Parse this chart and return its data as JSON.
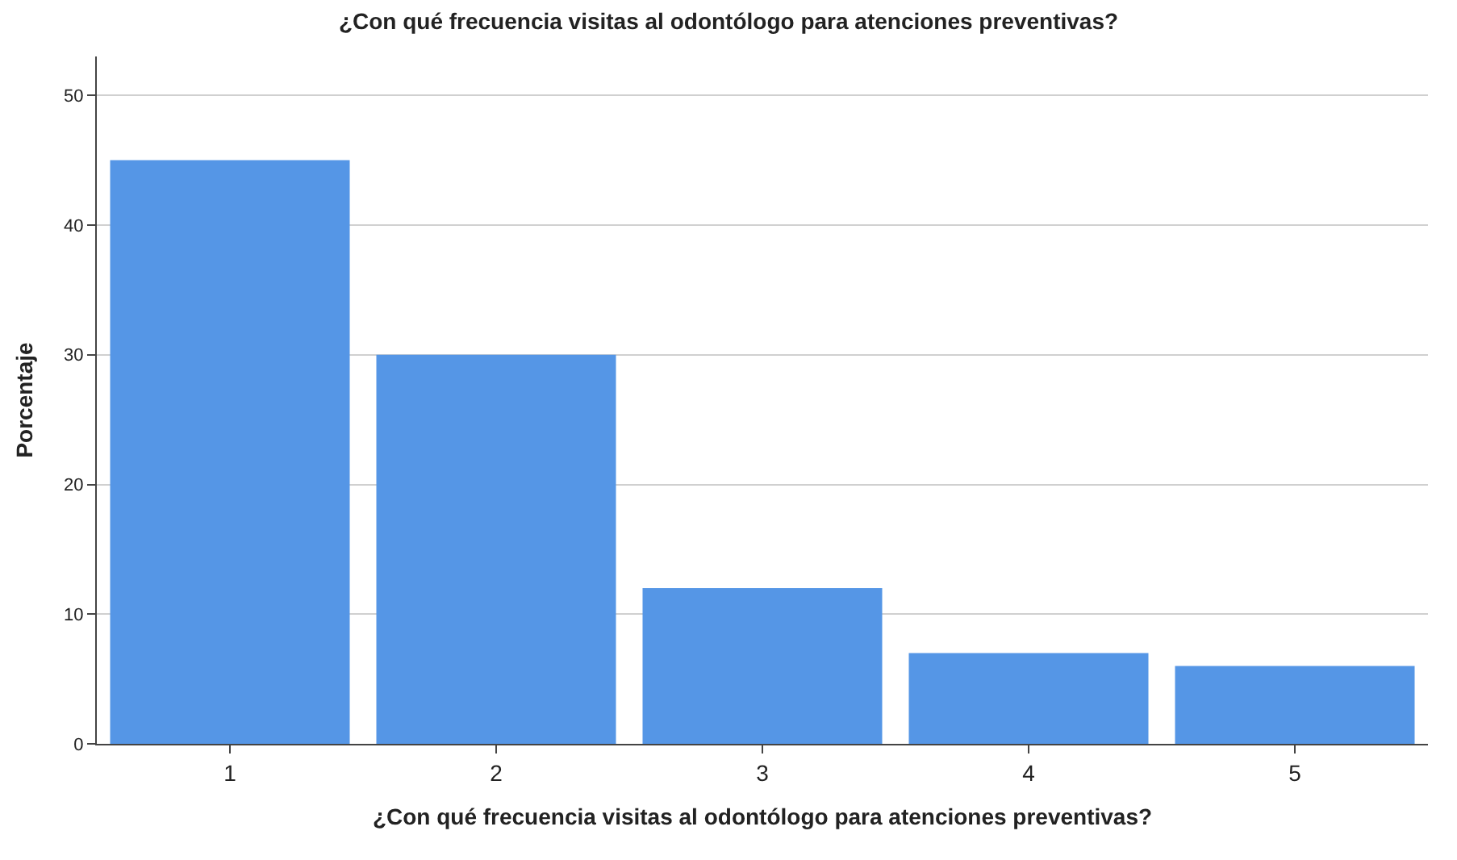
{
  "chart_data": {
    "type": "bar",
    "title": "¿Con qué frecuencia visitas al odontólogo para atenciones preventivas?",
    "xlabel": "¿Con qué frecuencia visitas al odontólogo para atenciones preventivas?",
    "ylabel": "Porcentaje",
    "categories": [
      "1",
      "2",
      "3",
      "4",
      "5"
    ],
    "values": [
      45,
      30,
      12,
      7,
      6
    ],
    "color": "#5596e6",
    "ylim": [
      0,
      53
    ],
    "yticks": [
      0,
      10,
      20,
      30,
      40,
      50
    ],
    "grid": "y",
    "legend": false
  }
}
